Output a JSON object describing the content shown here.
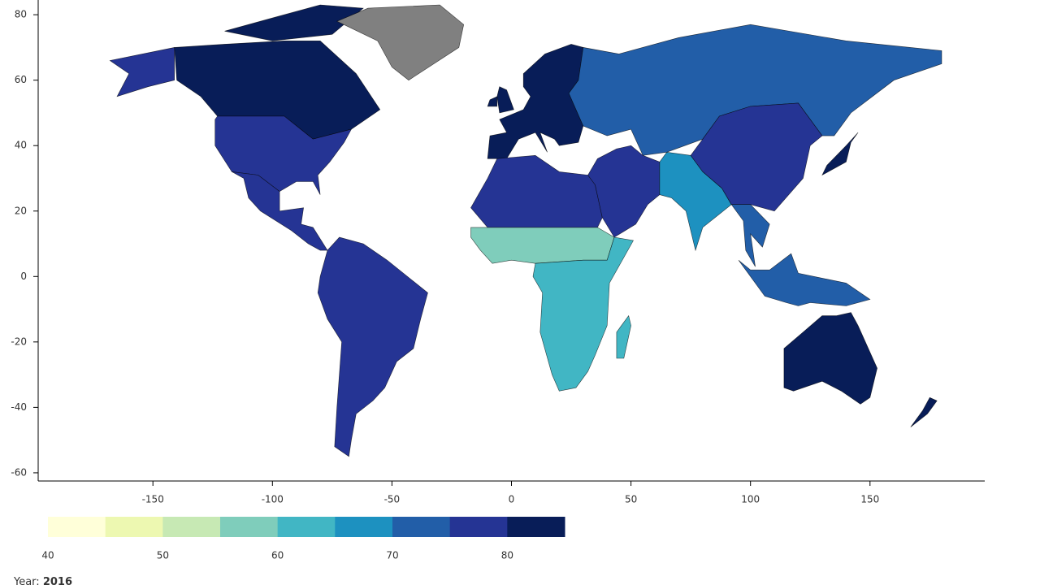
{
  "chart_data": {
    "type": "choropleth",
    "xlim": [
      -198,
      198
    ],
    "ylim": [
      -62.5,
      84.5
    ],
    "xticks": [
      -150,
      -100,
      -50,
      0,
      50,
      100,
      150
    ],
    "yticks": [
      -60,
      -40,
      -20,
      0,
      20,
      40,
      60,
      80
    ],
    "values": [
      82,
      79,
      79,
      76,
      75,
      null,
      82,
      81,
      71,
      75,
      56,
      61,
      63,
      76,
      68,
      76,
      70,
      84,
      83,
      82
    ],
    "missing_color": "#808080",
    "colorbar": {
      "lim": [
        40,
        85
      ],
      "ticks": [
        40,
        50,
        60,
        70,
        80
      ],
      "colors": [
        "#ffffd9",
        "#edf8b1",
        "#c7e9b4",
        "#7fcdbb",
        "#41b6c4",
        "#1d91c0",
        "#225ea8",
        "#253494",
        "#081d58"
      ]
    },
    "year_label": "Year:",
    "year": "2016"
  }
}
